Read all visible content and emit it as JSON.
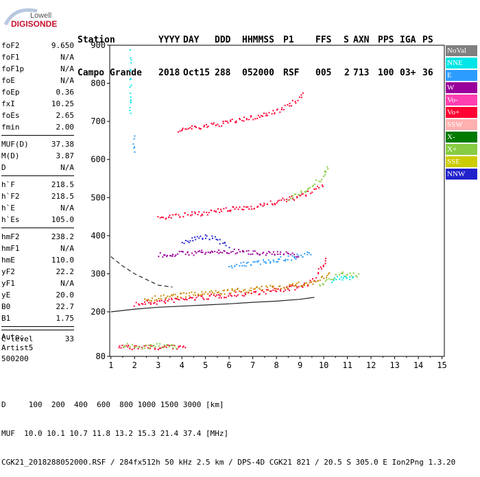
{
  "logo": {
    "line1": "Lowell",
    "line2": "DIGISONDE"
  },
  "header": {
    "columns": [
      "Station",
      "YYYY",
      "DAY",
      "DDD",
      "HHMMSS",
      "P1",
      "FFS",
      "S",
      "AXN",
      "PPS",
      "IGA",
      "PS"
    ],
    "values": [
      "Campo Grande",
      "2018",
      "Oct15",
      "288",
      "052000",
      "RSF",
      "005",
      "2",
      "713",
      "100",
      "03+",
      "36"
    ]
  },
  "params": [
    [
      {
        "label": "foF2",
        "value": "9.650"
      },
      {
        "label": "foF1",
        "value": "N/A"
      },
      {
        "label": "foF1p",
        "value": "N/A"
      },
      {
        "label": "foE",
        "value": "N/A"
      },
      {
        "label": "foEp",
        "value": "0.36"
      },
      {
        "label": "fxI",
        "value": "10.25"
      },
      {
        "label": "foEs",
        "value": "2.65"
      },
      {
        "label": "fmin",
        "value": "2.00"
      }
    ],
    [
      {
        "label": "MUF(D)",
        "value": "37.38"
      },
      {
        "label": "M(D)",
        "value": "3.87"
      },
      {
        "label": "D",
        "value": "N/A"
      }
    ],
    [
      {
        "label": "h`F",
        "value": "218.5"
      },
      {
        "label": "h`F2",
        "value": "218.5"
      },
      {
        "label": "h`E",
        "value": "N/A"
      },
      {
        "label": "h`Es",
        "value": "105.0"
      }
    ],
    [
      {
        "label": "hmF2",
        "value": "238.2"
      },
      {
        "label": "hmF1",
        "value": "N/A"
      },
      {
        "label": "hmE",
        "value": "110.0"
      },
      {
        "label": "yF2",
        "value": "22.2"
      },
      {
        "label": "yF1",
        "value": "N/A"
      },
      {
        "label": "yE",
        "value": "20.0"
      },
      {
        "label": "B0",
        "value": "22.7"
      },
      {
        "label": "B1",
        "value": "1.75"
      }
    ],
    [
      {
        "label": "C-level",
        "value": "33"
      }
    ]
  ],
  "auto": [
    "Auto:",
    "Artist5",
    "500200"
  ],
  "legend": [
    {
      "label": "NoVal",
      "color": "#808080"
    },
    {
      "label": "NNE",
      "color": "#00e5e5"
    },
    {
      "label": "E",
      "color": "#2e9cff"
    },
    {
      "label": "W",
      "color": "#9a009a"
    },
    {
      "label": "Vo-",
      "color": "#ff40b0"
    },
    {
      "label": "Vo+",
      "color": "#ff0033"
    },
    {
      "label": "SSW",
      "color": "#ffb0b0"
    },
    {
      "label": "X-",
      "color": "#007a00"
    },
    {
      "label": "X+",
      "color": "#88cc44"
    },
    {
      "label": "SSE",
      "color": "#cccc00"
    },
    {
      "label": "NNW",
      "color": "#2222cc"
    }
  ],
  "footer": {
    "d_line": "D     100  200  400  600  800 1000 1500 3000 [km]",
    "muf_line": "MUF  10.0 10.1 10.7 11.8 13.2 15.3 21.4 37.4 [MHz]",
    "info_line": "CGK21_2018288052000.RSF / 284fx512h 50 kHz 2.5 km / DPS-4D CGK21 821 / 20.5 S 305.0 E Ion2Png 1.3.20"
  },
  "chart_data": {
    "type": "scatter",
    "x_ticks": [
      1,
      2,
      3,
      4,
      5,
      6,
      7,
      8,
      9,
      10,
      11,
      12,
      13,
      14,
      15
    ],
    "y_ticks": [
      80,
      200,
      300,
      400,
      500,
      600,
      700,
      800,
      900
    ],
    "xlim": [
      0.95,
      15.1
    ],
    "ylim": [
      80,
      900
    ],
    "y_axis_segments": [
      [
        80,
        200
      ],
      [
        200,
        900
      ]
    ],
    "trace_bands": [
      {
        "name": "F-trace",
        "color": "#ff0033",
        "points": [
          [
            2,
            222
          ],
          [
            3,
            228
          ],
          [
            4,
            235
          ],
          [
            5,
            240
          ],
          [
            6,
            246
          ],
          [
            7,
            252
          ],
          [
            8,
            258
          ],
          [
            9,
            268
          ],
          [
            9.6,
            285
          ],
          [
            9.9,
            320
          ],
          [
            10.1,
            345
          ]
        ]
      },
      {
        "name": "F-trace",
        "color": "#cc8800",
        "points": [
          [
            2.4,
            235
          ],
          [
            3.5,
            243
          ],
          [
            5,
            250
          ],
          [
            6.5,
            258
          ],
          [
            8,
            266
          ],
          [
            9.5,
            278
          ],
          [
            10.3,
            300
          ]
        ]
      },
      {
        "name": "X-trace",
        "color": "#88cc44",
        "points": [
          [
            9.8,
            270
          ],
          [
            10.2,
            285
          ],
          [
            10.6,
            300
          ],
          [
            11,
            300
          ],
          [
            11.5,
            295
          ]
        ]
      },
      {
        "name": "X-trace",
        "color": "#00e5e5",
        "points": [
          [
            10.3,
            285
          ],
          [
            10.8,
            292
          ],
          [
            11.3,
            290
          ]
        ]
      },
      {
        "name": "2F",
        "color": "#ff0033",
        "points": [
          [
            3,
            450
          ],
          [
            4,
            455
          ],
          [
            5,
            462
          ],
          [
            6,
            470
          ],
          [
            7,
            478
          ],
          [
            8,
            490
          ],
          [
            9,
            505
          ],
          [
            9.6,
            520
          ],
          [
            10,
            535
          ]
        ]
      },
      {
        "name": "2F",
        "color": "#88cc44",
        "points": [
          [
            8.5,
            500
          ],
          [
            9,
            515
          ],
          [
            9.5,
            530
          ],
          [
            10,
            560
          ],
          [
            10.2,
            580
          ]
        ]
      },
      {
        "name": "3F",
        "color": "#ff0033",
        "points": [
          [
            3.8,
            680
          ],
          [
            5,
            688
          ],
          [
            6,
            700
          ],
          [
            7,
            712
          ],
          [
            8,
            728
          ],
          [
            8.8,
            755
          ],
          [
            9.2,
            780
          ]
        ]
      },
      {
        "name": "W",
        "color": "#9a009a",
        "points": [
          [
            3,
            350
          ],
          [
            4,
            355
          ],
          [
            5,
            358
          ],
          [
            6,
            360
          ],
          [
            7,
            358
          ],
          [
            8,
            355
          ],
          [
            9,
            350
          ]
        ]
      },
      {
        "name": "NNW",
        "color": "#2222cc",
        "points": [
          [
            4,
            380
          ],
          [
            4.5,
            395
          ],
          [
            5,
            400
          ],
          [
            5.5,
            390
          ],
          [
            6,
            375
          ]
        ]
      },
      {
        "name": "E",
        "color": "#2e9cff",
        "points": [
          [
            6,
            320
          ],
          [
            7,
            330
          ],
          [
            8,
            338
          ],
          [
            9,
            348
          ],
          [
            9.5,
            355
          ]
        ]
      },
      {
        "name": "Es",
        "color": "#ff0033",
        "points": [
          [
            1.3,
            107
          ],
          [
            1.8,
            106
          ],
          [
            2.4,
            107
          ],
          [
            3.0,
            106
          ],
          [
            3.6,
            107
          ],
          [
            4.2,
            106
          ]
        ]
      },
      {
        "name": "Es",
        "color": "#88cc44",
        "points": [
          [
            1.5,
            110
          ],
          [
            2.2,
            109
          ],
          [
            3,
            110
          ],
          [
            3.8,
            109
          ]
        ]
      },
      {
        "name": "NNE",
        "color": "#00e5e5",
        "points": [
          [
            1.8,
            885
          ],
          [
            1.8,
            820
          ],
          [
            1.8,
            760
          ],
          [
            1.8,
            720
          ]
        ]
      },
      {
        "name": "E",
        "color": "#2e9cff",
        "points": [
          [
            1.95,
            660
          ],
          [
            1.95,
            620
          ]
        ]
      }
    ],
    "profile_curve": [
      [
        1.0,
        200
      ],
      [
        2,
        207
      ],
      [
        3,
        212
      ],
      [
        4,
        215
      ],
      [
        5,
        218
      ],
      [
        6,
        221
      ],
      [
        7,
        225
      ],
      [
        8,
        228
      ],
      [
        9,
        233
      ],
      [
        9.6,
        238
      ]
    ],
    "dashed_curve": [
      [
        1.0,
        345
      ],
      [
        1.5,
        320
      ],
      [
        2,
        300
      ],
      [
        2.5,
        285
      ],
      [
        3,
        270
      ],
      [
        3.6,
        265
      ]
    ]
  }
}
